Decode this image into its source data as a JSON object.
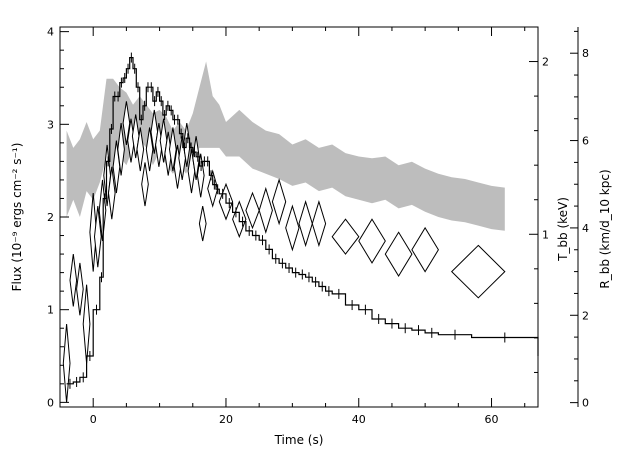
{
  "chart_data": {
    "type": "line",
    "xlabel": "Time (s)",
    "ylabel_left": "Flux (10⁻⁹ ergs cm⁻² s⁻¹)",
    "ylabel_right1": "T_bb (keV)",
    "ylabel_right2": "R_bb (km/d_10 kpc)",
    "xlim": [
      -5,
      67
    ],
    "ylim_flux": [
      -0.05,
      4.05
    ],
    "ylim_kT": [
      0,
      2.2
    ],
    "ylim_R": [
      -0.1,
      8.6
    ],
    "x_ticks": [
      "0",
      "20",
      "40",
      "60"
    ],
    "flux_ticks": [
      "0",
      "1",
      "2",
      "3",
      "4"
    ],
    "kT_ticks": [
      "1",
      "2"
    ],
    "R_ticks": [
      "0",
      "2",
      "4",
      "6",
      "8"
    ],
    "series": [
      {
        "label_id": "flux",
        "style": "step-with-errorbars",
        "points": [
          [
            -4.0,
            0.2
          ],
          [
            -3.0,
            0.22
          ],
          [
            -2.0,
            0.27
          ],
          [
            -1.0,
            0.5
          ],
          [
            0.0,
            1.0
          ],
          [
            1.0,
            1.35
          ],
          [
            1.5,
            2.2
          ],
          [
            2.0,
            2.6
          ],
          [
            2.5,
            2.95
          ],
          [
            3.0,
            3.3
          ],
          [
            3.5,
            3.3
          ],
          [
            4.0,
            3.45
          ],
          [
            4.5,
            3.5
          ],
          [
            5.0,
            3.6
          ],
          [
            5.5,
            3.72
          ],
          [
            6.0,
            3.6
          ],
          [
            6.5,
            3.4
          ],
          [
            7.0,
            3.05
          ],
          [
            7.5,
            3.2
          ],
          [
            8.0,
            3.4
          ],
          [
            8.5,
            3.4
          ],
          [
            9.0,
            3.25
          ],
          [
            9.5,
            3.35
          ],
          [
            10.0,
            3.25
          ],
          [
            10.5,
            3.1
          ],
          [
            11.0,
            3.2
          ],
          [
            11.5,
            3.15
          ],
          [
            12.0,
            3.05
          ],
          [
            12.5,
            3.05
          ],
          [
            13.0,
            2.9
          ],
          [
            13.5,
            2.75
          ],
          [
            14.0,
            2.85
          ],
          [
            14.5,
            2.75
          ],
          [
            15.0,
            2.7
          ],
          [
            15.5,
            2.65
          ],
          [
            16.0,
            2.55
          ],
          [
            16.5,
            2.6
          ],
          [
            17.0,
            2.6
          ],
          [
            17.5,
            2.45
          ],
          [
            18.0,
            2.35
          ],
          [
            18.5,
            2.3
          ],
          [
            19.0,
            2.25
          ],
          [
            20.0,
            2.15
          ],
          [
            21.0,
            2.05
          ],
          [
            22.0,
            1.95
          ],
          [
            23.0,
            1.85
          ],
          [
            24.0,
            1.8
          ],
          [
            25.0,
            1.75
          ],
          [
            26.0,
            1.65
          ],
          [
            27.0,
            1.55
          ],
          [
            28.0,
            1.5
          ],
          [
            29.0,
            1.45
          ],
          [
            30.0,
            1.4
          ],
          [
            31.0,
            1.38
          ],
          [
            32.0,
            1.35
          ],
          [
            33.0,
            1.3
          ],
          [
            34.0,
            1.25
          ],
          [
            35.0,
            1.2
          ],
          [
            36.0,
            1.17
          ],
          [
            38.0,
            1.05
          ],
          [
            40.0,
            1.0
          ],
          [
            42.0,
            0.9
          ],
          [
            44.0,
            0.85
          ],
          [
            46.0,
            0.8
          ],
          [
            48.0,
            0.78
          ],
          [
            50.0,
            0.75
          ],
          [
            52.0,
            0.73
          ],
          [
            57.0,
            0.7
          ],
          [
            67.0,
            0.5
          ]
        ]
      },
      {
        "label_id": "kT",
        "style": "shaded-band",
        "points": [
          [
            -4.0,
            1.1,
            1.6
          ],
          [
            -3.0,
            1.2,
            1.5
          ],
          [
            -2.0,
            1.1,
            1.55
          ],
          [
            -1.0,
            1.25,
            1.65
          ],
          [
            0.0,
            1.2,
            1.55
          ],
          [
            1.0,
            1.3,
            1.6
          ],
          [
            2.0,
            1.45,
            1.9
          ],
          [
            3.0,
            1.35,
            1.9
          ],
          [
            4.0,
            1.45,
            1.85
          ],
          [
            5.0,
            1.4,
            1.82
          ],
          [
            6.0,
            1.5,
            1.75
          ],
          [
            7.0,
            1.55,
            1.8
          ],
          [
            8.0,
            1.5,
            1.75
          ],
          [
            9.0,
            1.4,
            1.7
          ],
          [
            10.0,
            1.48,
            1.72
          ],
          [
            11.0,
            1.4,
            1.68
          ],
          [
            12.0,
            1.35,
            1.6
          ],
          [
            13.0,
            1.4,
            1.65
          ],
          [
            14.0,
            1.35,
            1.6
          ],
          [
            15.0,
            1.45,
            1.7
          ],
          [
            16.0,
            1.5,
            1.85
          ],
          [
            17.0,
            1.5,
            2.0
          ],
          [
            18.0,
            1.5,
            1.8
          ],
          [
            19.0,
            1.5,
            1.75
          ],
          [
            20.0,
            1.45,
            1.65
          ],
          [
            22.0,
            1.45,
            1.72
          ],
          [
            24.0,
            1.38,
            1.65
          ],
          [
            26.0,
            1.35,
            1.6
          ],
          [
            28.0,
            1.32,
            1.58
          ],
          [
            30.0,
            1.28,
            1.52
          ],
          [
            32.0,
            1.3,
            1.55
          ],
          [
            34.0,
            1.25,
            1.5
          ],
          [
            36.0,
            1.27,
            1.52
          ],
          [
            38.0,
            1.22,
            1.47
          ],
          [
            40.0,
            1.2,
            1.45
          ],
          [
            42.0,
            1.18,
            1.44
          ],
          [
            44.0,
            1.2,
            1.45
          ],
          [
            46.0,
            1.15,
            1.4
          ],
          [
            48.0,
            1.17,
            1.42
          ],
          [
            50.0,
            1.13,
            1.38
          ],
          [
            52.0,
            1.1,
            1.35
          ],
          [
            54.0,
            1.08,
            1.33
          ],
          [
            56.0,
            1.07,
            1.32
          ],
          [
            58.0,
            1.05,
            1.3
          ],
          [
            60.0,
            1.03,
            1.28
          ],
          [
            62.0,
            1.02,
            1.27
          ]
        ]
      },
      {
        "label_id": "R",
        "style": "diamonds",
        "points": [
          [
            -4.0,
            0.9,
            1.0,
            0.9
          ],
          [
            -3.0,
            2.8,
            1.0,
            0.6
          ],
          [
            -2.0,
            2.6,
            1.0,
            0.6
          ],
          [
            -1.0,
            1.8,
            1.0,
            0.9
          ],
          [
            0.0,
            3.9,
            1.0,
            0.9
          ],
          [
            0.7,
            3.8,
            1.0,
            0.7
          ],
          [
            1.4,
            4.4,
            1.0,
            0.7
          ],
          [
            2.1,
            5.2,
            1.0,
            0.7
          ],
          [
            2.8,
            4.8,
            1.0,
            0.6
          ],
          [
            3.5,
            5.4,
            1.0,
            0.6
          ],
          [
            4.2,
            5.8,
            1.0,
            0.6
          ],
          [
            5.0,
            6.4,
            1.0,
            0.5
          ],
          [
            5.7,
            6.0,
            1.0,
            0.5
          ],
          [
            6.4,
            6.1,
            1.0,
            0.5
          ],
          [
            7.1,
            5.8,
            1.0,
            0.5
          ],
          [
            7.8,
            5.0,
            1.0,
            0.5
          ],
          [
            8.5,
            5.8,
            1.0,
            0.5
          ],
          [
            9.2,
            6.2,
            1.0,
            0.5
          ],
          [
            9.9,
            5.9,
            1.0,
            0.5
          ],
          [
            10.6,
            6.0,
            1.0,
            0.5
          ],
          [
            11.3,
            5.7,
            1.0,
            0.5
          ],
          [
            12.0,
            5.8,
            1.0,
            0.5
          ],
          [
            12.7,
            5.4,
            1.0,
            0.5
          ],
          [
            13.4,
            5.6,
            1.0,
            0.5
          ],
          [
            14.1,
            5.9,
            1.0,
            0.5
          ],
          [
            14.8,
            5.3,
            1.0,
            0.5
          ],
          [
            15.5,
            5.6,
            1.0,
            0.5
          ],
          [
            16.2,
            5.2,
            1.0,
            0.5
          ],
          [
            16.5,
            4.1,
            1.0,
            0.4
          ],
          [
            18.0,
            4.9,
            1.5,
            0.4
          ],
          [
            20.0,
            4.6,
            2.0,
            0.4
          ],
          [
            22.0,
            4.2,
            2.0,
            0.4
          ],
          [
            24.0,
            4.4,
            2.0,
            0.4
          ],
          [
            26.0,
            4.4,
            2.0,
            0.5
          ],
          [
            28.0,
            4.6,
            2.0,
            0.5
          ],
          [
            30.0,
            4.0,
            2.0,
            0.5
          ],
          [
            32.0,
            4.1,
            2.0,
            0.5
          ],
          [
            34.0,
            4.1,
            2.0,
            0.5
          ],
          [
            38.0,
            3.8,
            4.0,
            0.4
          ],
          [
            42.0,
            3.7,
            4.0,
            0.5
          ],
          [
            46.0,
            3.4,
            4.0,
            0.5
          ],
          [
            50.0,
            3.5,
            4.0,
            0.5
          ],
          [
            58.0,
            3.0,
            8.0,
            0.6
          ]
        ]
      }
    ]
  }
}
